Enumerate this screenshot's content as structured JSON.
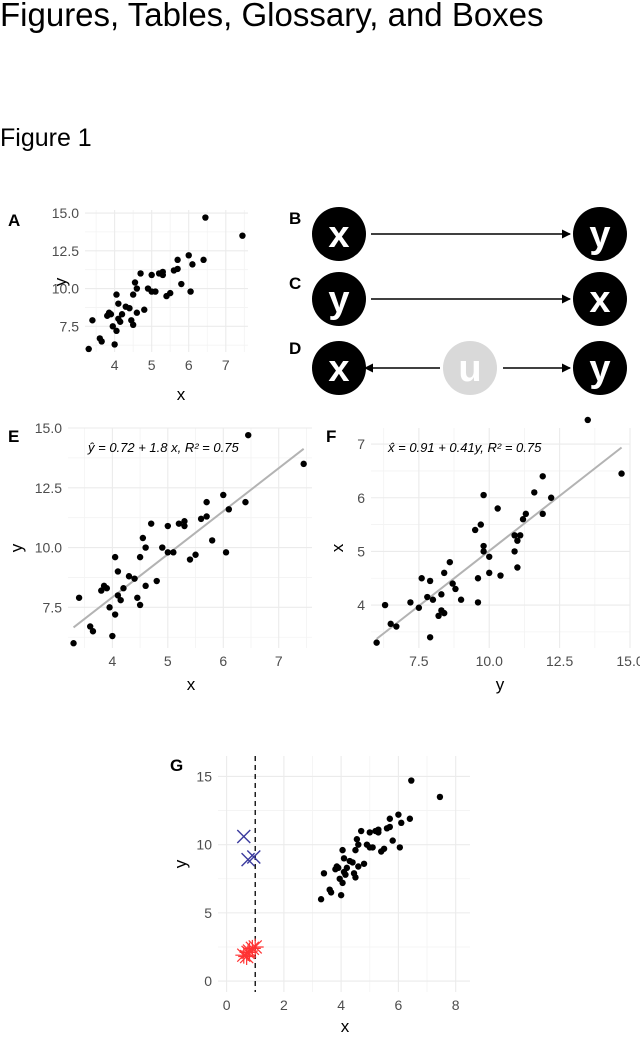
{
  "heading": "Figures, Tables, Glossary, and Boxes",
  "figure_title": "Figure 1",
  "panel_labels": {
    "A": "A",
    "B": "B",
    "C": "C",
    "D": "D",
    "E": "E",
    "F": "F",
    "G": "G"
  },
  "diagrams": {
    "B": {
      "left": "x",
      "right": "y",
      "arrow": "right"
    },
    "C": {
      "left": "y",
      "right": "x",
      "arrow": "right"
    },
    "D": {
      "left": "x",
      "middle": "u",
      "right": "y",
      "arrow": "both-out"
    }
  },
  "colors": {
    "grid": "#ebebeb",
    "points": "#000000",
    "fit_line": "#b3b3b3",
    "latent_node": "#d9d9d9",
    "cross_blue": "#3b3b9e",
    "star_red": "#ff3333"
  },
  "equations": {
    "E": "ŷ = 0.72 + 1.8 x, R² = 0.75",
    "F": "x̂ = 0.91 + 0.41y, R² = 0.75"
  },
  "chart_data": [
    {
      "panel": "A",
      "type": "scatter",
      "xlabel": "x",
      "ylabel": "y",
      "xlim": [
        3.2,
        7.6
      ],
      "ylim": [
        5.8,
        15.2
      ],
      "xticks": [
        "4",
        "5",
        "6",
        "7"
      ],
      "yticks": [
        "7.5",
        "10.0",
        "12.5",
        "15.0"
      ],
      "grid": true,
      "legend": "none"
    },
    {
      "panel": "E",
      "type": "scatter",
      "xlabel": "x",
      "ylabel": "y",
      "xlim": [
        3.2,
        7.6
      ],
      "ylim": [
        5.8,
        15.0
      ],
      "xticks": [
        "4",
        "5",
        "6",
        "7"
      ],
      "yticks": [
        "7.5",
        "10.0",
        "12.5",
        "15.0"
      ],
      "fit": {
        "intercept": 0.72,
        "slope": 1.8
      },
      "grid": true,
      "legend": "none"
    },
    {
      "panel": "F",
      "type": "scatter",
      "xlabel": "y",
      "ylabel": "x",
      "xlim": [
        5.8,
        15.0
      ],
      "ylim": [
        3.2,
        7.3
      ],
      "xticks": [
        "7.5",
        "10.0",
        "12.5",
        "15.0"
      ],
      "yticks": [
        "4",
        "5",
        "6",
        "7"
      ],
      "fit": {
        "intercept": 0.91,
        "slope": 0.41
      },
      "grid": true,
      "legend": "none"
    },
    {
      "panel": "G",
      "type": "scatter",
      "xlabel": "x",
      "ylabel": "y",
      "xlim": [
        -0.3,
        8.5
      ],
      "ylim": [
        -0.8,
        16.5
      ],
      "xticks": [
        "0",
        "2",
        "4",
        "6",
        "8"
      ],
      "yticks": [
        "0",
        "5",
        "10",
        "15"
      ],
      "vline_x": 1,
      "crosses": [
        {
          "x": 0.6,
          "y": 10.6
        },
        {
          "x": 0.75,
          "y": 8.9
        },
        {
          "x": 0.95,
          "y": 9.1
        }
      ],
      "stars": [
        {
          "x": 0.6,
          "y": 1.9
        },
        {
          "x": 0.75,
          "y": 2.1
        },
        {
          "x": 0.7,
          "y": 1.8
        },
        {
          "x": 0.9,
          "y": 2.4
        },
        {
          "x": 1.0,
          "y": 2.5
        },
        {
          "x": 0.8,
          "y": 2.2
        }
      ],
      "grid": true,
      "legend": "none"
    }
  ],
  "points": [
    {
      "x": 3.3,
      "y": 6.0
    },
    {
      "x": 3.4,
      "y": 7.9
    },
    {
      "x": 3.6,
      "y": 6.7
    },
    {
      "x": 3.65,
      "y": 6.5
    },
    {
      "x": 3.8,
      "y": 8.2
    },
    {
      "x": 3.85,
      "y": 8.4
    },
    {
      "x": 3.9,
      "y": 8.3
    },
    {
      "x": 3.95,
      "y": 7.5
    },
    {
      "x": 4.0,
      "y": 6.3
    },
    {
      "x": 4.05,
      "y": 7.2
    },
    {
      "x": 4.05,
      "y": 9.6
    },
    {
      "x": 4.1,
      "y": 8.0
    },
    {
      "x": 4.1,
      "y": 9.0
    },
    {
      "x": 4.15,
      "y": 7.8
    },
    {
      "x": 4.2,
      "y": 8.3
    },
    {
      "x": 4.3,
      "y": 8.8
    },
    {
      "x": 4.4,
      "y": 8.7
    },
    {
      "x": 4.45,
      "y": 7.9
    },
    {
      "x": 4.5,
      "y": 7.6
    },
    {
      "x": 4.5,
      "y": 9.6
    },
    {
      "x": 4.55,
      "y": 10.4
    },
    {
      "x": 4.6,
      "y": 8.4
    },
    {
      "x": 4.6,
      "y": 10.0
    },
    {
      "x": 4.7,
      "y": 11.0
    },
    {
      "x": 4.8,
      "y": 8.6
    },
    {
      "x": 4.9,
      "y": 10.0
    },
    {
      "x": 5.0,
      "y": 9.8
    },
    {
      "x": 5.0,
      "y": 10.9
    },
    {
      "x": 5.1,
      "y": 9.8
    },
    {
      "x": 5.2,
      "y": 11.0
    },
    {
      "x": 5.3,
      "y": 10.9
    },
    {
      "x": 5.3,
      "y": 11.1
    },
    {
      "x": 5.4,
      "y": 9.5
    },
    {
      "x": 5.5,
      "y": 9.7
    },
    {
      "x": 5.6,
      "y": 11.2
    },
    {
      "x": 5.7,
      "y": 11.9
    },
    {
      "x": 5.7,
      "y": 11.3
    },
    {
      "x": 5.8,
      "y": 10.3
    },
    {
      "x": 6.0,
      "y": 12.2
    },
    {
      "x": 6.05,
      "y": 9.8
    },
    {
      "x": 6.1,
      "y": 11.6
    },
    {
      "x": 6.4,
      "y": 11.9
    },
    {
      "x": 6.45,
      "y": 14.7
    },
    {
      "x": 7.45,
      "y": 13.5
    }
  ]
}
